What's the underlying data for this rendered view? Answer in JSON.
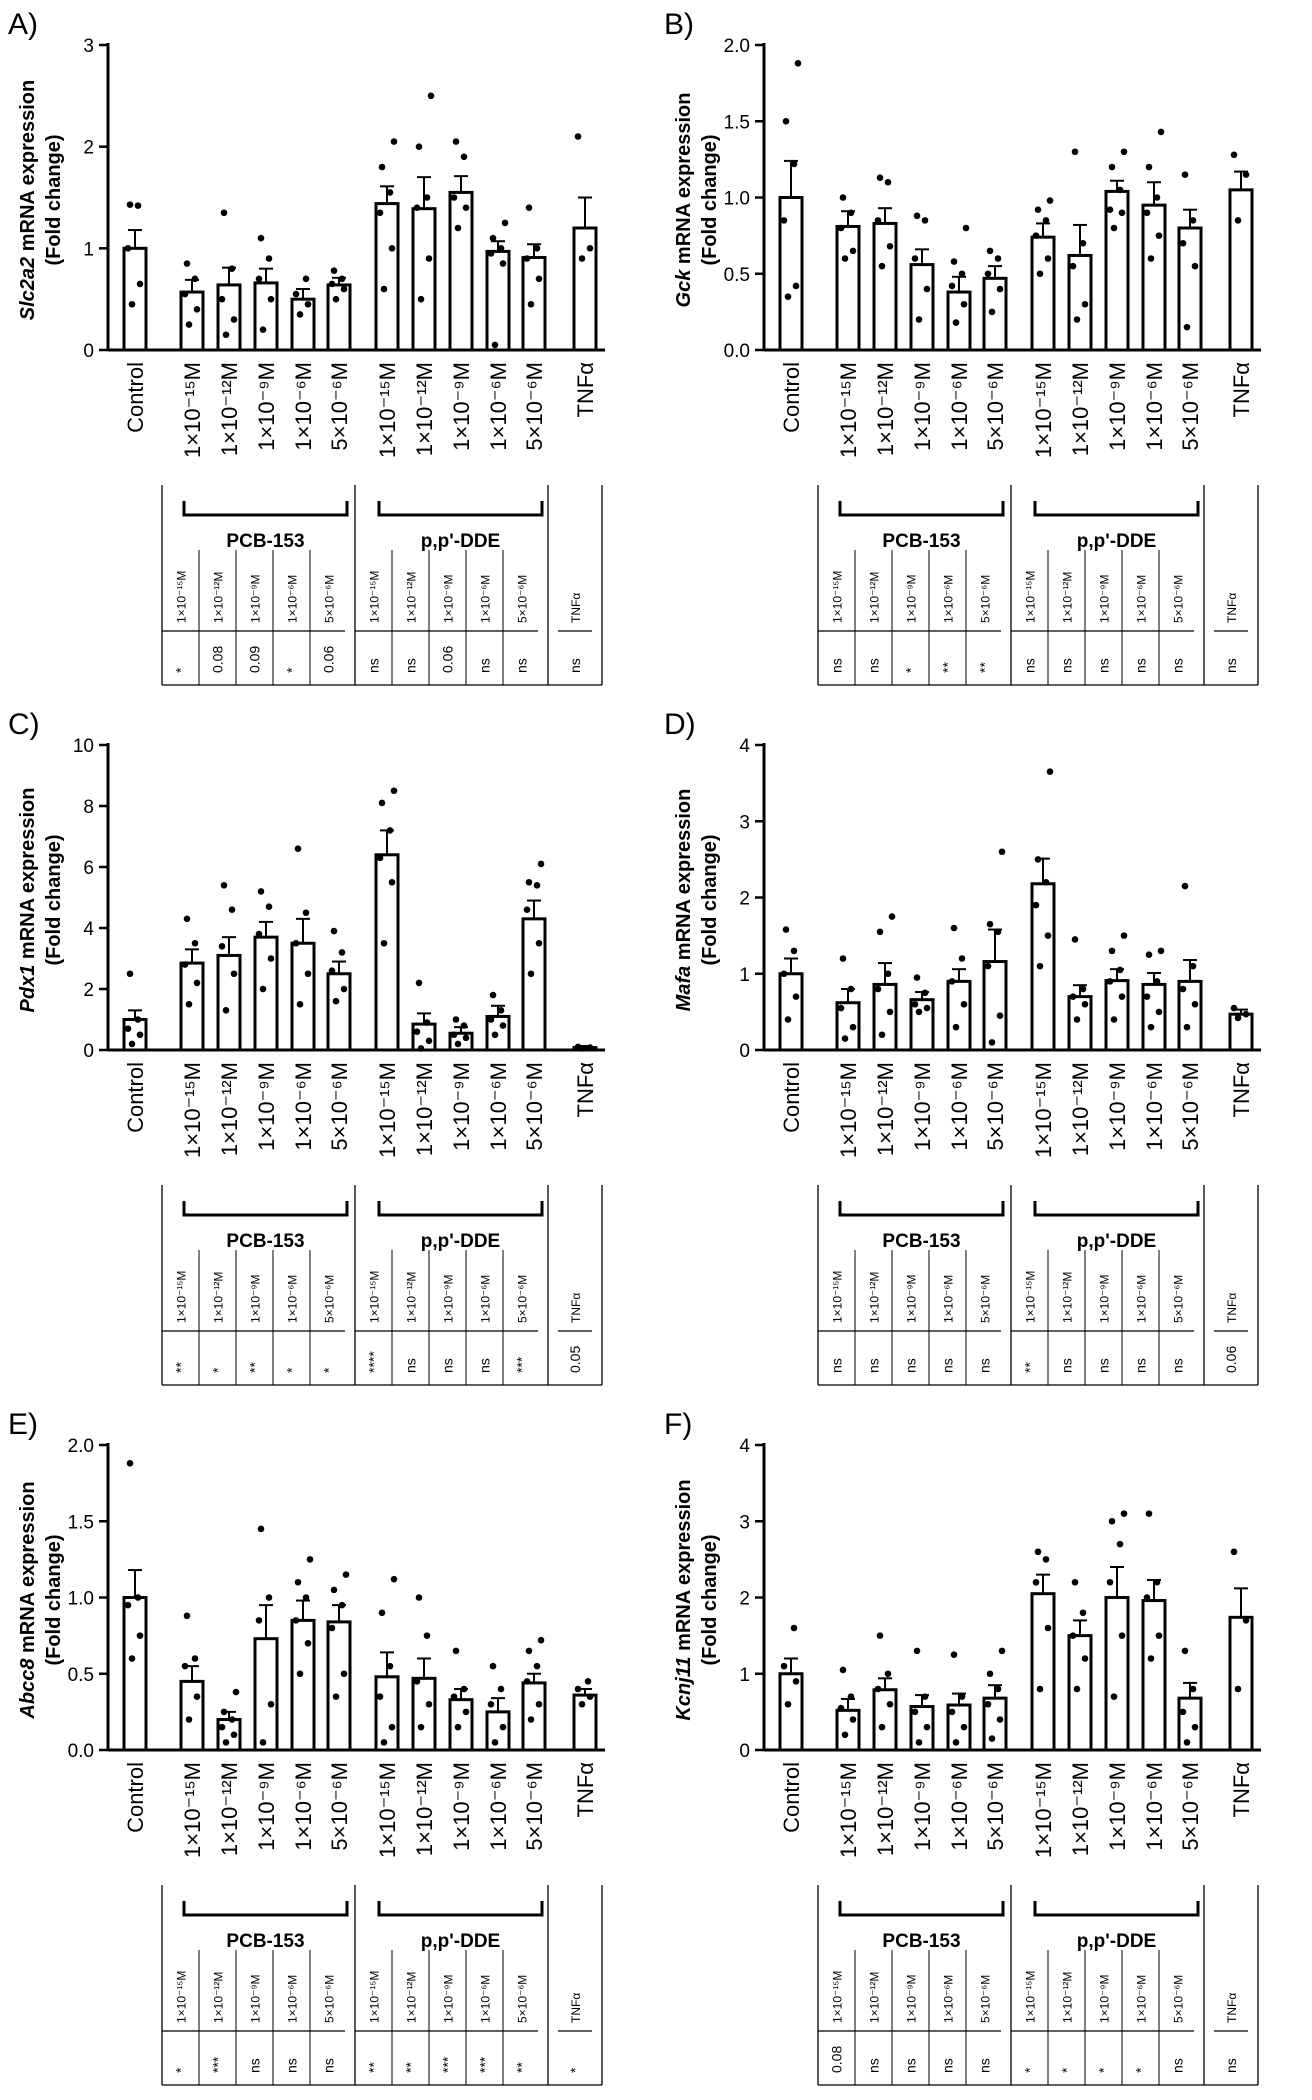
{
  "figure": {
    "categories": [
      "Control",
      "1×10⁻¹⁵M",
      "1×10⁻¹²M",
      "1×10⁻⁹M",
      "1×10⁻⁶M",
      "5×10⁻⁶M",
      "1×10⁻¹⁵M",
      "1×10⁻¹²M",
      "1×10⁻⁹M",
      "1×10⁻⁶M",
      "5×10⁻⁶M",
      "TNFα"
    ],
    "groups": [
      "PCB-153",
      "p,p'-DDE"
    ],
    "stats_headers": [
      "1×10⁻¹⁵M",
      "1×10⁻¹²M",
      "1×10⁻⁹M",
      "1×10⁻⁶M",
      "5×10⁻⁶M",
      "1×10⁻¹⁵M",
      "1×10⁻¹²M",
      "1×10⁻⁹M",
      "1×10⁻⁶M",
      "5×10⁻⁶M",
      "TNFα"
    ]
  },
  "chart_data": [
    {
      "type": "bar",
      "panel": "A)",
      "gene": "Slc2a2",
      "ylabel_suffix": " mRNA expression",
      "ylabel2": "(Fold change)",
      "ylim": [
        0,
        3
      ],
      "yticks": [
        "0",
        "1",
        "2",
        "3"
      ],
      "ytick_values": [
        0,
        1,
        2,
        3
      ],
      "values": [
        1.0,
        0.57,
        0.64,
        0.66,
        0.5,
        0.64,
        1.44,
        1.39,
        1.55,
        0.97,
        0.91,
        1.2
      ],
      "errors": [
        0.18,
        0.12,
        0.17,
        0.14,
        0.1,
        0.07,
        0.17,
        0.31,
        0.16,
        0.1,
        0.13,
        0.3
      ],
      "points": [
        [
          0.45,
          0.65,
          1.0,
          1.42,
          1.43
        ],
        [
          0.25,
          0.4,
          0.55,
          0.7,
          0.85
        ],
        [
          0.15,
          0.3,
          0.5,
          0.8,
          1.35
        ],
        [
          0.2,
          0.5,
          0.7,
          0.9,
          1.1
        ],
        [
          0.35,
          0.45,
          0.55,
          0.7
        ],
        [
          0.5,
          0.6,
          0.65,
          0.7,
          0.78
        ],
        [
          0.6,
          1.0,
          1.35,
          1.55,
          1.8,
          2.05
        ],
        [
          0.5,
          0.9,
          1.4,
          1.5,
          2.0,
          2.5
        ],
        [
          1.2,
          1.4,
          1.5,
          1.9,
          2.05
        ],
        [
          0.05,
          0.85,
          0.95,
          1.0,
          1.1,
          1.25
        ],
        [
          0.45,
          0.7,
          0.9,
          1.0,
          1.4
        ],
        [
          0.9,
          1.0,
          2.1
        ]
      ],
      "stats": [
        "*",
        "0.08",
        "0.09",
        "*",
        "0.06",
        "ns",
        "ns",
        "0.06",
        "ns",
        "ns",
        "ns"
      ]
    },
    {
      "type": "bar",
      "panel": "B)",
      "gene": "Gck",
      "ylabel_suffix": " mRNA expression",
      "ylabel2": "(Fold change)",
      "ylim": [
        0,
        2.0
      ],
      "yticks": [
        "0.0",
        "0.5",
        "1.0",
        "1.5",
        "2.0"
      ],
      "ytick_values": [
        0,
        0.5,
        1.0,
        1.5,
        2.0
      ],
      "values": [
        1.0,
        0.81,
        0.83,
        0.56,
        0.38,
        0.47,
        0.74,
        0.62,
        1.04,
        0.95,
        0.8,
        1.05
      ],
      "errors": [
        0.24,
        0.1,
        0.1,
        0.1,
        0.1,
        0.08,
        0.09,
        0.2,
        0.07,
        0.15,
        0.12,
        0.12
      ],
      "points": [
        [
          0.35,
          0.42,
          0.85,
          1.22,
          1.5,
          1.88
        ],
        [
          0.6,
          0.65,
          0.8,
          0.9,
          1.0
        ],
        [
          0.55,
          0.68,
          0.85,
          1.1,
          1.13
        ],
        [
          0.2,
          0.4,
          0.6,
          0.85,
          0.88
        ],
        [
          0.18,
          0.3,
          0.42,
          0.5,
          0.58,
          0.8
        ],
        [
          0.25,
          0.4,
          0.5,
          0.6,
          0.65
        ],
        [
          0.5,
          0.6,
          0.75,
          0.85,
          0.92,
          0.98
        ],
        [
          0.2,
          0.3,
          0.55,
          0.7,
          1.3
        ],
        [
          0.8,
          0.9,
          0.92,
          1.05,
          1.2,
          1.3
        ],
        [
          0.6,
          0.75,
          0.9,
          1.0,
          1.2,
          1.43
        ],
        [
          0.15,
          0.55,
          0.7,
          0.85,
          1.15
        ],
        [
          0.85,
          1.15,
          1.28
        ]
      ],
      "stats": [
        "ns",
        "ns",
        "*",
        "**",
        "**",
        "ns",
        "ns",
        "ns",
        "ns",
        "ns",
        "ns"
      ]
    },
    {
      "type": "bar",
      "panel": "C)",
      "gene": "Pdx1",
      "ylabel_suffix": " mRNA expression",
      "ylabel2": "(Fold change)",
      "ylim": [
        0,
        10
      ],
      "yticks": [
        "0",
        "2",
        "4",
        "6",
        "8",
        "10"
      ],
      "ytick_values": [
        0,
        2,
        4,
        6,
        8,
        10
      ],
      "values": [
        1.0,
        2.85,
        3.1,
        3.7,
        3.5,
        2.5,
        6.4,
        0.85,
        0.55,
        1.1,
        4.3,
        0.08
      ],
      "errors": [
        0.3,
        0.45,
        0.6,
        0.5,
        0.8,
        0.4,
        0.8,
        0.35,
        0.2,
        0.35,
        0.6,
        0.05
      ],
      "points": [
        [
          0.2,
          0.5,
          0.7,
          1.0,
          2.5
        ],
        [
          1.5,
          2.2,
          2.8,
          3.5,
          4.3
        ],
        [
          1.3,
          2.5,
          3.4,
          4.6,
          5.4
        ],
        [
          2.0,
          3.0,
          3.8,
          4.7,
          5.2
        ],
        [
          1.5,
          2.5,
          3.5,
          4.5,
          6.6
        ],
        [
          1.6,
          2.0,
          2.6,
          3.2,
          3.9
        ],
        [
          3.5,
          5.5,
          6.3,
          7.2,
          8.1,
          8.5
        ],
        [
          0.05,
          0.3,
          0.6,
          0.9,
          2.2
        ],
        [
          0.2,
          0.4,
          0.5,
          0.8,
          1.0
        ],
        [
          0.5,
          0.8,
          1.0,
          1.3,
          1.8
        ],
        [
          2.5,
          3.5,
          4.6,
          5.4,
          5.5,
          6.1
        ],
        [
          0.05,
          0.08,
          0.1
        ]
      ],
      "stats": [
        "**",
        "*",
        "**",
        "*",
        "*",
        "****",
        "ns",
        "ns",
        "ns",
        "***",
        "0.05"
      ]
    },
    {
      "type": "bar",
      "panel": "D)",
      "gene": "Mafa",
      "ylabel_suffix": " mRNA expression",
      "ylabel2": "(Fold change)",
      "ylim": [
        0,
        4
      ],
      "yticks": [
        "0",
        "1",
        "2",
        "3",
        "4"
      ],
      "ytick_values": [
        0,
        1,
        2,
        3,
        4
      ],
      "values": [
        1.0,
        0.62,
        0.86,
        0.66,
        0.9,
        1.16,
        2.18,
        0.7,
        0.91,
        0.86,
        0.9,
        0.47
      ],
      "errors": [
        0.2,
        0.18,
        0.28,
        0.1,
        0.16,
        0.42,
        0.33,
        0.15,
        0.15,
        0.15,
        0.28,
        0.06
      ],
      "points": [
        [
          0.4,
          0.7,
          1.0,
          1.3,
          1.58
        ],
        [
          0.15,
          0.3,
          0.55,
          0.8,
          1.2
        ],
        [
          0.2,
          0.5,
          0.8,
          1.0,
          1.55,
          1.75
        ],
        [
          0.5,
          0.55,
          0.6,
          0.75,
          0.95
        ],
        [
          0.3,
          0.6,
          0.9,
          1.2,
          1.6
        ],
        [
          0.1,
          0.45,
          1.1,
          1.55,
          1.65,
          2.6
        ],
        [
          1.1,
          1.5,
          1.9,
          2.2,
          2.5,
          3.65
        ],
        [
          0.4,
          0.6,
          0.7,
          0.8,
          1.45
        ],
        [
          0.4,
          0.7,
          0.9,
          1.05,
          1.3,
          1.5
        ],
        [
          0.3,
          0.5,
          0.7,
          0.9,
          1.25,
          1.3
        ],
        [
          0.3,
          0.6,
          0.8,
          1.1,
          2.15
        ],
        [
          0.42,
          0.47,
          0.55
        ]
      ],
      "stats": [
        "ns",
        "ns",
        "ns",
        "ns",
        "ns",
        "**",
        "ns",
        "ns",
        "ns",
        "ns",
        "0.06"
      ]
    },
    {
      "type": "bar",
      "panel": "E)",
      "gene": "Abcc8",
      "ylabel_suffix": " mRNA expression",
      "ylabel2": "(Fold change)",
      "ylim": [
        0,
        2.0
      ],
      "yticks": [
        "0.0",
        "0.5",
        "1.0",
        "1.5",
        "2.0"
      ],
      "ytick_values": [
        0,
        0.5,
        1.0,
        1.5,
        2.0
      ],
      "values": [
        1.0,
        0.45,
        0.2,
        0.73,
        0.85,
        0.84,
        0.48,
        0.47,
        0.33,
        0.25,
        0.44,
        0.36
      ],
      "errors": [
        0.18,
        0.1,
        0.05,
        0.22,
        0.13,
        0.11,
        0.16,
        0.13,
        0.07,
        0.09,
        0.06,
        0.04
      ],
      "points": [
        [
          0.6,
          0.75,
          0.95,
          1.0,
          1.88
        ],
        [
          0.2,
          0.35,
          0.55,
          0.6,
          0.88
        ],
        [
          0.05,
          0.1,
          0.15,
          0.2,
          0.25,
          0.38
        ],
        [
          0.05,
          0.3,
          0.85,
          1.0,
          1.45
        ],
        [
          0.5,
          0.7,
          0.85,
          1.0,
          1.1,
          1.25
        ],
        [
          0.35,
          0.5,
          0.8,
          0.95,
          1.05,
          1.15
        ],
        [
          0.05,
          0.15,
          0.35,
          0.55,
          0.9,
          1.12
        ],
        [
          0.15,
          0.3,
          0.45,
          0.75,
          1.0
        ],
        [
          0.15,
          0.25,
          0.35,
          0.4,
          0.65
        ],
        [
          0.05,
          0.15,
          0.3,
          0.4,
          0.55
        ],
        [
          0.2,
          0.3,
          0.45,
          0.55,
          0.65,
          0.72
        ],
        [
          0.3,
          0.35,
          0.4,
          0.45
        ]
      ],
      "stats": [
        "*",
        "***",
        "ns",
        "ns",
        "ns",
        "**",
        "**",
        "***",
        "***",
        "**",
        "*"
      ]
    },
    {
      "type": "bar",
      "panel": "F)",
      "gene": "Kcnj11",
      "ylabel_suffix": " mRNA expression",
      "ylabel2": "(Fold change)",
      "ylim": [
        0,
        4
      ],
      "yticks": [
        "0",
        "1",
        "2",
        "3",
        "4"
      ],
      "ytick_values": [
        0,
        1,
        2,
        3,
        4
      ],
      "values": [
        1.0,
        0.52,
        0.79,
        0.57,
        0.59,
        0.68,
        2.05,
        1.5,
        2.0,
        1.96,
        0.68,
        1.74
      ],
      "errors": [
        0.2,
        0.15,
        0.15,
        0.15,
        0.15,
        0.17,
        0.25,
        0.2,
        0.4,
        0.27,
        0.2,
        0.38
      ],
      "points": [
        [
          0.6,
          0.9,
          1.1,
          1.6
        ],
        [
          0.2,
          0.4,
          0.55,
          0.7,
          1.05
        ],
        [
          0.3,
          0.6,
          0.8,
          1.0,
          1.5
        ],
        [
          0.1,
          0.3,
          0.5,
          0.7,
          1.3
        ],
        [
          0.1,
          0.3,
          0.5,
          0.7,
          1.25
        ],
        [
          0.15,
          0.4,
          0.6,
          0.8,
          1.0,
          1.3
        ],
        [
          0.8,
          1.6,
          2.2,
          2.5,
          2.6
        ],
        [
          0.8,
          1.2,
          1.5,
          1.8,
          2.2
        ],
        [
          0.7,
          1.5,
          2.2,
          2.7,
          3.0,
          3.1
        ],
        [
          1.2,
          1.5,
          2.0,
          2.2,
          3.1
        ],
        [
          0.1,
          0.3,
          0.5,
          0.8,
          1.3
        ],
        [
          0.8,
          1.7,
          2.6
        ]
      ],
      "stats": [
        "0.08",
        "ns",
        "ns",
        "ns",
        "ns",
        "*",
        "*",
        "*",
        "*",
        "ns",
        "ns"
      ]
    }
  ]
}
